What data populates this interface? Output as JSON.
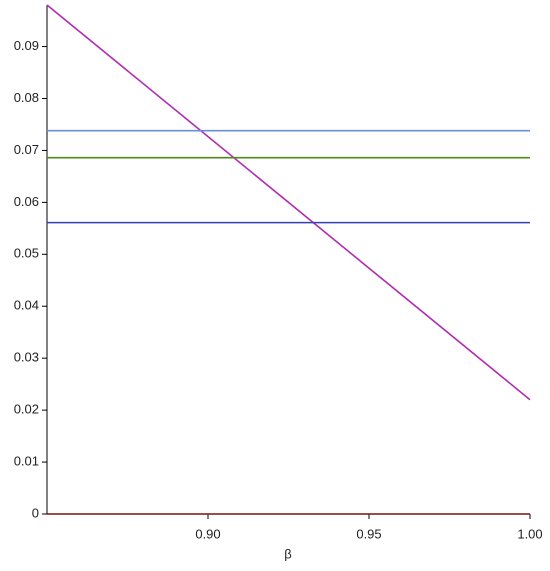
{
  "chart_data": {
    "type": "line",
    "xlabel": "β",
    "x": [
      0.85,
      1.0
    ],
    "series": [
      {
        "color": "#b22cb2",
        "values": [
          0.098,
          0.022
        ]
      },
      {
        "color": "#6b8fd4",
        "values": [
          0.0738,
          0.0738
        ]
      },
      {
        "color": "#4e8a1a",
        "values": [
          0.0686,
          0.0686
        ]
      },
      {
        "color": "#3540b0",
        "values": [
          0.0561,
          0.0561
        ]
      },
      {
        "color": "#7a1010",
        "values": [
          0,
          0
        ]
      }
    ],
    "xlim": [
      0.85,
      1.0
    ],
    "ylim": [
      0,
      0.098
    ],
    "xticks": [
      {
        "value": 0.9,
        "label": "0.90"
      },
      0.95,
      {
        "value": 1.0,
        "label": "1.00"
      }
    ],
    "yticks": [
      0,
      0.01,
      0.02,
      0.03,
      0.04,
      0.05,
      0.06,
      0.07,
      0.08,
      0.09
    ]
  }
}
